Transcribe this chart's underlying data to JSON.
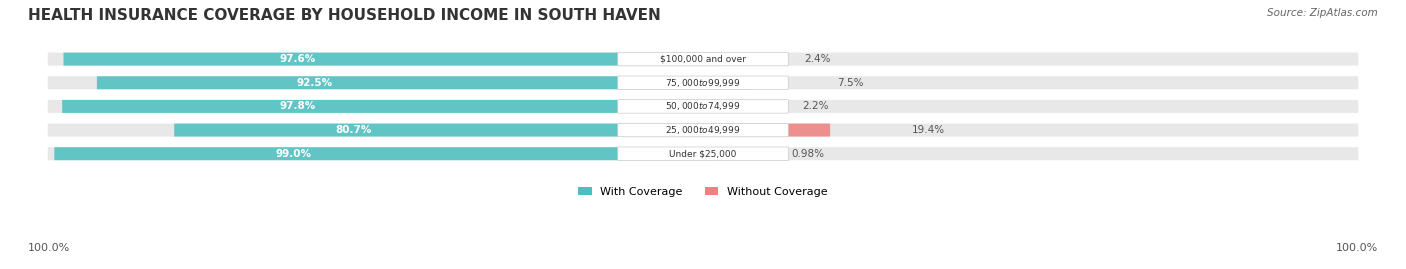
{
  "title": "HEALTH INSURANCE COVERAGE BY HOUSEHOLD INCOME IN SOUTH HAVEN",
  "source": "Source: ZipAtlas.com",
  "categories": [
    "Under $25,000",
    "$25,000 to $49,999",
    "$50,000 to $74,999",
    "$75,000 to $99,999",
    "$100,000 and over"
  ],
  "with_coverage": [
    99.0,
    80.7,
    97.8,
    92.5,
    97.6
  ],
  "without_coverage": [
    0.98,
    19.4,
    2.2,
    7.5,
    2.4
  ],
  "with_coverage_labels": [
    "99.0%",
    "80.7%",
    "97.8%",
    "92.5%",
    "97.6%"
  ],
  "without_coverage_labels": [
    "0.98%",
    "19.4%",
    "2.2%",
    "7.5%",
    "2.4%"
  ],
  "color_with": "#4BBFBF",
  "color_without": "#F08080",
  "bar_bg_color": "#f0f0f0",
  "legend_label_with": "With Coverage",
  "legend_label_without": "Without Coverage",
  "axis_label_left": "100.0%",
  "axis_label_right": "100.0%",
  "title_fontsize": 11,
  "label_fontsize": 8,
  "bar_height": 0.55
}
